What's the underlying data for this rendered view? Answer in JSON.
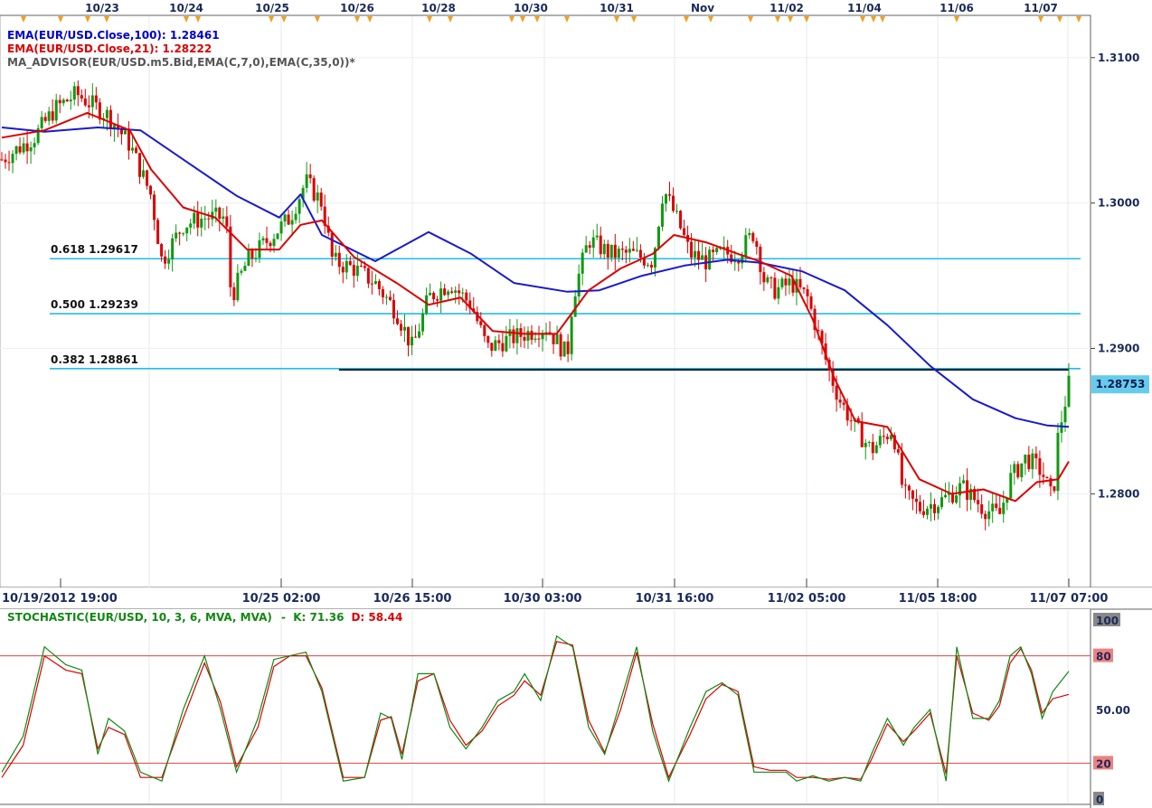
{
  "chart_data": {
    "type": "candlestick",
    "symbol": "EUR/USD",
    "top_date_labels": [
      "10/23",
      "10/24",
      "10/25",
      "10/26",
      "10/28",
      "10/30",
      "10/31",
      "Nov",
      "11/02",
      "11/04",
      "11/06",
      "11/07"
    ],
    "bottom_time_labels": [
      "10/19/2012 19:00",
      "10/25 02:00",
      "10/26 15:00",
      "10/30 03:00",
      "10/31 16:00",
      "11/02 05:00",
      "11/05 18:00",
      "11/07 07:00"
    ],
    "price_axis": {
      "ticks": [
        "1.3100",
        "1.3000",
        "1.2900",
        "1.2800"
      ],
      "tick_values": [
        1.31,
        1.3,
        1.29,
        1.28
      ],
      "range": [
        1.2748,
        1.3121
      ]
    },
    "legend": [
      {
        "text": "EMA(EUR/USD.Close,100): 1.28461",
        "color": "#0000cc"
      },
      {
        "text": "EMA(EUR/USD.Close,21): 1.28222",
        "color": "#dd0000"
      },
      {
        "text": "MA_ADVISOR(EUR/USD.m5.Bid,EMA(C,7,0),EMA(C,35,0))*",
        "color": "#555555"
      }
    ],
    "current_price": {
      "label": "1.28753",
      "value": 1.28753
    },
    "fib_levels": [
      {
        "label": "0.618 1.29617",
        "value": 1.29617
      },
      {
        "label": "0.500 1.29239",
        "value": 1.29239
      },
      {
        "label": "0.382 1.28861",
        "value": 1.28861
      }
    ],
    "support_line": {
      "value": 1.28853,
      "from_t": 0.316,
      "to_t": 1.0
    },
    "ema100": [
      [
        0,
        1.3052
      ],
      [
        0.04,
        1.3049
      ],
      [
        0.09,
        1.3052
      ],
      [
        0.13,
        1.305
      ],
      [
        0.17,
        1.303
      ],
      [
        0.22,
        1.3005
      ],
      [
        0.26,
        1.299
      ],
      [
        0.28,
        1.3006
      ],
      [
        0.3,
        1.2978
      ],
      [
        0.35,
        1.296
      ],
      [
        0.4,
        1.298
      ],
      [
        0.44,
        1.2965
      ],
      [
        0.48,
        1.2945
      ],
      [
        0.53,
        1.2939
      ],
      [
        0.56,
        1.294
      ],
      [
        0.6,
        1.295
      ],
      [
        0.64,
        1.2957
      ],
      [
        0.68,
        1.2961
      ],
      [
        0.71,
        1.2959
      ],
      [
        0.75,
        1.2953
      ],
      [
        0.79,
        1.294
      ],
      [
        0.83,
        1.2916
      ],
      [
        0.87,
        1.2888
      ],
      [
        0.91,
        1.2865
      ],
      [
        0.95,
        1.2852
      ],
      [
        0.98,
        1.2847
      ],
      [
        1.0,
        1.28461
      ]
    ],
    "ema21": [
      [
        0,
        1.3045
      ],
      [
        0.04,
        1.305
      ],
      [
        0.08,
        1.3062
      ],
      [
        0.12,
        1.305
      ],
      [
        0.14,
        1.3023
      ],
      [
        0.17,
        1.2997
      ],
      [
        0.2,
        1.299
      ],
      [
        0.23,
        1.2968
      ],
      [
        0.26,
        1.2968
      ],
      [
        0.28,
        1.2985
      ],
      [
        0.3,
        1.2988
      ],
      [
        0.33,
        1.2963
      ],
      [
        0.37,
        1.2945
      ],
      [
        0.4,
        1.293
      ],
      [
        0.43,
        1.2935
      ],
      [
        0.46,
        1.2912
      ],
      [
        0.49,
        1.291
      ],
      [
        0.52,
        1.291
      ],
      [
        0.55,
        1.294
      ],
      [
        0.58,
        1.2955
      ],
      [
        0.61,
        1.2965
      ],
      [
        0.63,
        1.2978
      ],
      [
        0.66,
        1.2973
      ],
      [
        0.69,
        1.2965
      ],
      [
        0.71,
        1.296
      ],
      [
        0.74,
        1.295
      ],
      [
        0.76,
        1.292
      ],
      [
        0.78,
        1.288
      ],
      [
        0.8,
        1.285
      ],
      [
        0.83,
        1.2846
      ],
      [
        0.86,
        1.281
      ],
      [
        0.89,
        1.28
      ],
      [
        0.92,
        1.2803
      ],
      [
        0.95,
        1.2795
      ],
      [
        0.97,
        1.2808
      ],
      [
        0.99,
        1.281
      ],
      [
        1.0,
        1.28222
      ]
    ],
    "price_path": [
      [
        0,
        1.303
      ],
      [
        0.03,
        1.3045
      ],
      [
        0.05,
        1.3065
      ],
      [
        0.07,
        1.3075
      ],
      [
        0.1,
        1.306
      ],
      [
        0.12,
        1.304
      ],
      [
        0.14,
        1.3005
      ],
      [
        0.15,
        1.296
      ],
      [
        0.17,
        1.2985
      ],
      [
        0.19,
        1.299
      ],
      [
        0.21,
        1.299
      ],
      [
        0.215,
        1.2935
      ],
      [
        0.23,
        1.296
      ],
      [
        0.25,
        1.2975
      ],
      [
        0.27,
        1.299
      ],
      [
        0.285,
        1.3015
      ],
      [
        0.3,
        1.3
      ],
      [
        0.31,
        1.296
      ],
      [
        0.33,
        1.2955
      ],
      [
        0.35,
        1.2945
      ],
      [
        0.37,
        1.2925
      ],
      [
        0.385,
        1.29
      ],
      [
        0.4,
        1.2935
      ],
      [
        0.42,
        1.2945
      ],
      [
        0.44,
        1.293
      ],
      [
        0.455,
        1.29
      ],
      [
        0.47,
        1.2905
      ],
      [
        0.49,
        1.291
      ],
      [
        0.51,
        1.2915
      ],
      [
        0.53,
        1.2895
      ],
      [
        0.535,
        1.2935
      ],
      [
        0.55,
        1.2975
      ],
      [
        0.57,
        1.2965
      ],
      [
        0.59,
        1.2965
      ],
      [
        0.61,
        1.296
      ],
      [
        0.62,
        1.301
      ],
      [
        0.635,
        1.2985
      ],
      [
        0.645,
        1.2965
      ],
      [
        0.66,
        1.296
      ],
      [
        0.675,
        1.2965
      ],
      [
        0.69,
        1.2965
      ],
      [
        0.705,
        1.298
      ],
      [
        0.715,
        1.2945
      ],
      [
        0.725,
        1.294
      ],
      [
        0.74,
        1.2945
      ],
      [
        0.755,
        1.2935
      ],
      [
        0.765,
        1.291
      ],
      [
        0.775,
        1.2885
      ],
      [
        0.785,
        1.2865
      ],
      [
        0.8,
        1.2845
      ],
      [
        0.815,
        1.283
      ],
      [
        0.835,
        1.2845
      ],
      [
        0.845,
        1.28
      ],
      [
        0.86,
        1.279
      ],
      [
        0.88,
        1.2795
      ],
      [
        0.9,
        1.2805
      ],
      [
        0.92,
        1.279
      ],
      [
        0.935,
        1.2785
      ],
      [
        0.945,
        1.281
      ],
      [
        0.96,
        1.2825
      ],
      [
        0.975,
        1.2815
      ],
      [
        0.985,
        1.2795
      ],
      [
        0.99,
        1.284
      ],
      [
        1.0,
        1.28753
      ]
    ],
    "stochastic": {
      "title": "STOCHASTIC(EUR/USD, 10, 3, 6, MVA, MVA)",
      "k_label": "K: 71.36",
      "d_label": "D: 58.44",
      "k": 71.36,
      "d": 58.44,
      "ylim": [
        0,
        100
      ],
      "axis_ticks": [
        "100",
        "80",
        "50.00",
        "20",
        "0"
      ],
      "axis_values": [
        100,
        80,
        50,
        20,
        0
      ],
      "levels": [
        80,
        20
      ],
      "k_series": [
        [
          0,
          15
        ],
        [
          0.02,
          35
        ],
        [
          0.04,
          85
        ],
        [
          0.06,
          75
        ],
        [
          0.075,
          72
        ],
        [
          0.09,
          25
        ],
        [
          0.1,
          45
        ],
        [
          0.115,
          38
        ],
        [
          0.13,
          15
        ],
        [
          0.15,
          10
        ],
        [
          0.17,
          50
        ],
        [
          0.19,
          80
        ],
        [
          0.205,
          50
        ],
        [
          0.22,
          15
        ],
        [
          0.24,
          45
        ],
        [
          0.255,
          78
        ],
        [
          0.27,
          80
        ],
        [
          0.285,
          82
        ],
        [
          0.3,
          60
        ],
        [
          0.32,
          10
        ],
        [
          0.34,
          12
        ],
        [
          0.355,
          48
        ],
        [
          0.365,
          45
        ],
        [
          0.375,
          22
        ],
        [
          0.39,
          70
        ],
        [
          0.405,
          70
        ],
        [
          0.42,
          40
        ],
        [
          0.435,
          28
        ],
        [
          0.45,
          40
        ],
        [
          0.465,
          55
        ],
        [
          0.48,
          60
        ],
        [
          0.49,
          70
        ],
        [
          0.505,
          55
        ],
        [
          0.52,
          91
        ],
        [
          0.535,
          85
        ],
        [
          0.55,
          40
        ],
        [
          0.565,
          25
        ],
        [
          0.58,
          55
        ],
        [
          0.595,
          85
        ],
        [
          0.61,
          38
        ],
        [
          0.625,
          10
        ],
        [
          0.645,
          40
        ],
        [
          0.66,
          60
        ],
        [
          0.675,
          65
        ],
        [
          0.69,
          58
        ],
        [
          0.705,
          15
        ],
        [
          0.72,
          15
        ],
        [
          0.735,
          15
        ],
        [
          0.745,
          10
        ],
        [
          0.76,
          13
        ],
        [
          0.775,
          10
        ],
        [
          0.79,
          12
        ],
        [
          0.805,
          10
        ],
        [
          0.815,
          25
        ],
        [
          0.83,
          45
        ],
        [
          0.845,
          30
        ],
        [
          0.855,
          40
        ],
        [
          0.87,
          50
        ],
        [
          0.885,
          10
        ],
        [
          0.895,
          85
        ],
        [
          0.91,
          45
        ],
        [
          0.925,
          45
        ],
        [
          0.935,
          55
        ],
        [
          0.945,
          80
        ],
        [
          0.955,
          85
        ],
        [
          0.965,
          70
        ],
        [
          0.975,
          45
        ],
        [
          0.985,
          60
        ],
        [
          1.0,
          71.36
        ]
      ],
      "d_series": [
        [
          0,
          12
        ],
        [
          0.02,
          30
        ],
        [
          0.04,
          80
        ],
        [
          0.06,
          72
        ],
        [
          0.075,
          70
        ],
        [
          0.09,
          28
        ],
        [
          0.1,
          40
        ],
        [
          0.115,
          36
        ],
        [
          0.13,
          12
        ],
        [
          0.15,
          12
        ],
        [
          0.17,
          45
        ],
        [
          0.19,
          76
        ],
        [
          0.205,
          54
        ],
        [
          0.22,
          18
        ],
        [
          0.24,
          40
        ],
        [
          0.255,
          74
        ],
        [
          0.27,
          80
        ],
        [
          0.285,
          80
        ],
        [
          0.3,
          62
        ],
        [
          0.32,
          12
        ],
        [
          0.34,
          12
        ],
        [
          0.355,
          44
        ],
        [
          0.365,
          46
        ],
        [
          0.375,
          25
        ],
        [
          0.39,
          66
        ],
        [
          0.405,
          70
        ],
        [
          0.42,
          44
        ],
        [
          0.435,
          30
        ],
        [
          0.45,
          38
        ],
        [
          0.465,
          52
        ],
        [
          0.48,
          58
        ],
        [
          0.49,
          66
        ],
        [
          0.505,
          58
        ],
        [
          0.52,
          88
        ],
        [
          0.535,
          86
        ],
        [
          0.55,
          44
        ],
        [
          0.565,
          26
        ],
        [
          0.58,
          50
        ],
        [
          0.595,
          82
        ],
        [
          0.61,
          42
        ],
        [
          0.625,
          12
        ],
        [
          0.645,
          36
        ],
        [
          0.66,
          56
        ],
        [
          0.675,
          64
        ],
        [
          0.69,
          60
        ],
        [
          0.705,
          18
        ],
        [
          0.72,
          16
        ],
        [
          0.735,
          16
        ],
        [
          0.745,
          12
        ],
        [
          0.76,
          12
        ],
        [
          0.775,
          11
        ],
        [
          0.79,
          12
        ],
        [
          0.805,
          11
        ],
        [
          0.815,
          22
        ],
        [
          0.83,
          42
        ],
        [
          0.845,
          32
        ],
        [
          0.855,
          38
        ],
        [
          0.87,
          48
        ],
        [
          0.885,
          14
        ],
        [
          0.895,
          80
        ],
        [
          0.91,
          48
        ],
        [
          0.925,
          44
        ],
        [
          0.935,
          52
        ],
        [
          0.945,
          76
        ],
        [
          0.955,
          84
        ],
        [
          0.965,
          72
        ],
        [
          0.975,
          48
        ],
        [
          0.985,
          56
        ],
        [
          1.0,
          58.44
        ]
      ]
    }
  },
  "colors": {
    "up": "#119911",
    "down": "#dd0000",
    "ema100": "#1a1acc",
    "ema21": "#dd0000",
    "fib": "#22bbee",
    "support": "#000000",
    "stoch_k": "#118811",
    "stoch_d": "#dd0000",
    "level_line": "#dd4444",
    "grid": "#e4e6ec",
    "axis_text": "#1a2a5a",
    "price_tag_bg": "#66ccee",
    "marker": "#f0a020"
  }
}
